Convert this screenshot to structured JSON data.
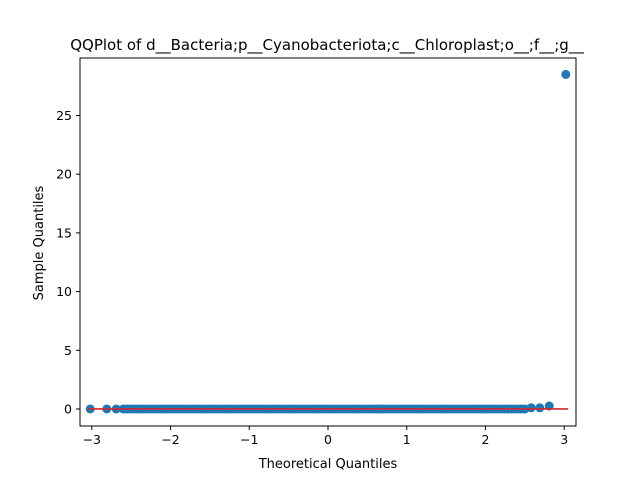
{
  "chart_data": {
    "type": "scatter",
    "title": "QQPlot of d__Bacteria;p__Cyanobacteriota;c__Chloroplast;o__;f__;g__",
    "xlabel": "Theoretical Quantiles",
    "ylabel": "Sample Quantiles",
    "xlim": [
      -3.15,
      3.15
    ],
    "ylim": [
      -1.45,
      29.9
    ],
    "xticks": [
      -3,
      -2,
      -1,
      0,
      1,
      2,
      3
    ],
    "xtick_labels": [
      "−3",
      "−2",
      "−1",
      "0",
      "1",
      "2",
      "3"
    ],
    "yticks": [
      0,
      5,
      10,
      15,
      20,
      25
    ],
    "ytick_labels": [
      "0",
      "5",
      "10",
      "15",
      "20",
      "25"
    ],
    "grid": false,
    "point_color": "#1f77b4",
    "line_color": "#d62728",
    "reference_line": {
      "x": [
        -3.05,
        3.05
      ],
      "y": [
        0.0,
        0.0
      ]
    },
    "outliers": [
      {
        "x": -3.02,
        "y": 0.0
      },
      {
        "x": -2.81,
        "y": 0.0
      },
      {
        "x": -2.69,
        "y": 0.0
      },
      {
        "x": 2.58,
        "y": 0.1
      },
      {
        "x": 2.69,
        "y": 0.1
      },
      {
        "x": 2.81,
        "y": 0.25
      },
      {
        "x": 3.02,
        "y": 28.5
      }
    ],
    "bulk": {
      "x_start": -2.6,
      "x_end": 2.5,
      "y": 0.0
    }
  }
}
